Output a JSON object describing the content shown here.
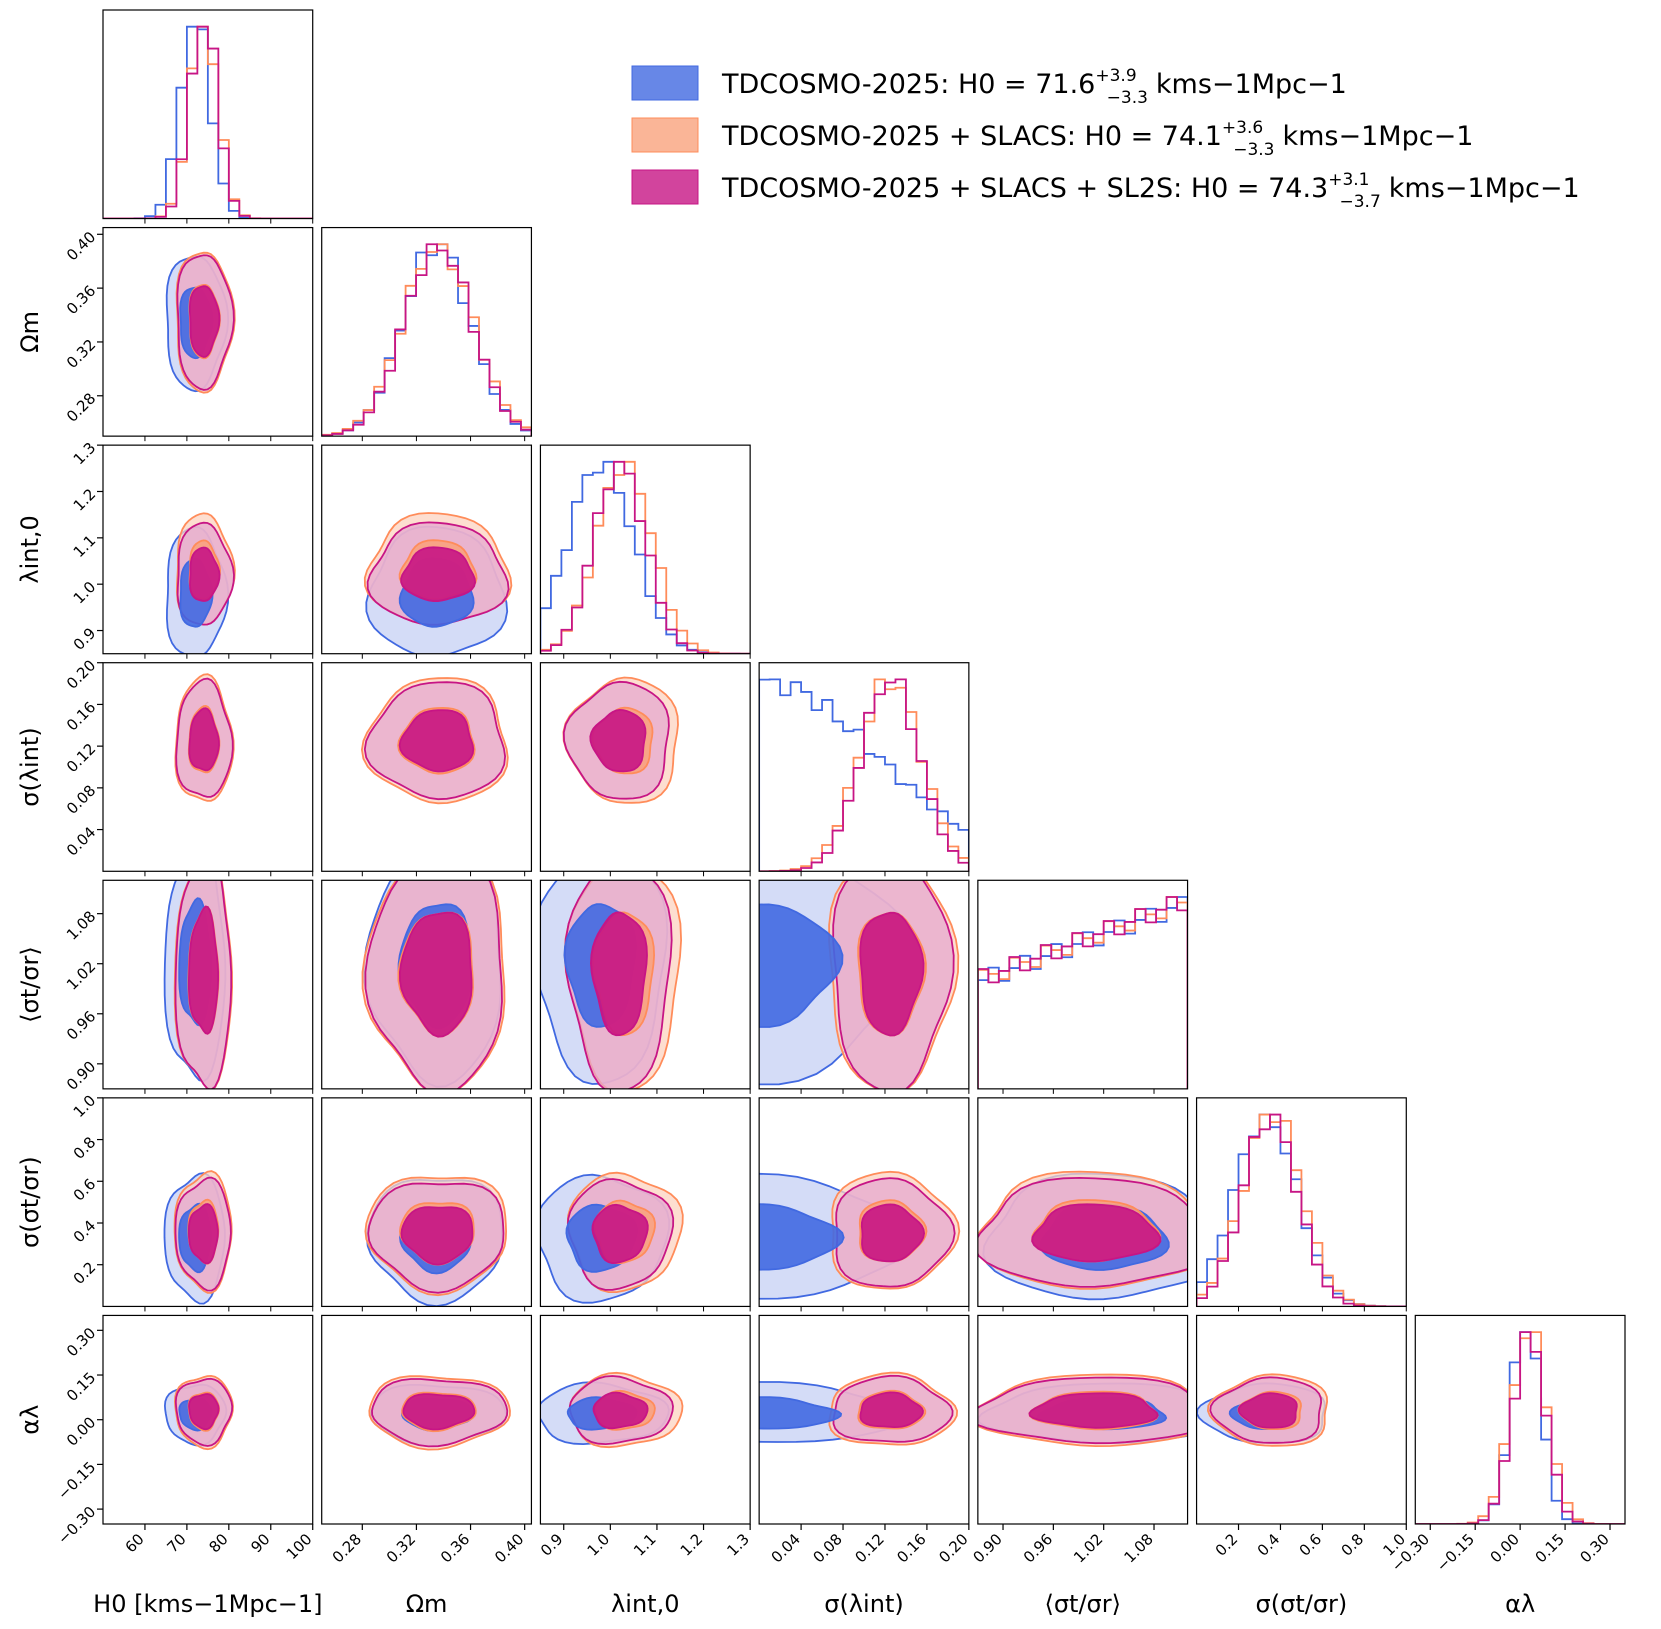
{
  "chart_data": {
    "type": "corner",
    "parameters": [
      {
        "key": "H0",
        "label": "H0 [kms−1Mpc−1]",
        "range": [
          50,
          100
        ],
        "ticks": [
          "60",
          "70",
          "80",
          "90",
          "100"
        ],
        "tick_values": [
          60,
          70,
          80,
          90,
          100
        ]
      },
      {
        "key": "Om",
        "label": "Ωm",
        "range": [
          0.25,
          0.405
        ],
        "ticks": [
          "0.28",
          "0.32",
          "0.36",
          "0.40"
        ],
        "tick_values": [
          0.28,
          0.32,
          0.36,
          0.4
        ]
      },
      {
        "key": "lam",
        "label": "λint,0",
        "range": [
          0.85,
          1.3
        ],
        "ticks": [
          "0.9",
          "1.0",
          "1.1",
          "1.2",
          "1.3"
        ],
        "tick_values": [
          0.9,
          1.0,
          1.1,
          1.2,
          1.3
        ]
      },
      {
        "key": "sig_lam",
        "label": "σ(λint)",
        "range": [
          0.0,
          0.2
        ],
        "ticks": [
          "0.04",
          "0.08",
          "0.12",
          "0.16",
          "0.20"
        ],
        "tick_values": [
          0.04,
          0.08,
          0.12,
          0.16,
          0.2
        ]
      },
      {
        "key": "ratio",
        "label": "⟨σt/σr⟩",
        "range": [
          0.87,
          1.12
        ],
        "ticks": [
          "0.90",
          "0.96",
          "1.02",
          "1.08"
        ],
        "tick_values": [
          0.9,
          0.96,
          1.02,
          1.08
        ]
      },
      {
        "key": "sig_ratio",
        "label": "σ(σt/σr)",
        "range": [
          0.0,
          1.0
        ],
        "ticks": [
          "0.2",
          "0.4",
          "0.6",
          "0.8",
          "1.0"
        ],
        "tick_values": [
          0.2,
          0.4,
          0.6,
          0.8,
          1.0
        ]
      },
      {
        "key": "alpha",
        "label": "αλ",
        "range": [
          -0.35,
          0.35
        ],
        "ticks": [
          "−0.30",
          "−0.15",
          "0.00",
          "0.15",
          "0.30"
        ],
        "tick_values": [
          -0.3,
          -0.15,
          0.0,
          0.15,
          0.3
        ]
      }
    ],
    "series": [
      {
        "name": "TDCOSMO-2025",
        "H0_label": "H0 = 71.6",
        "H0_plus": "+3.9",
        "H0_minus": "−3.3",
        "units": "kms−1Mpc−1",
        "color": "#4169e1",
        "fill1": "#4169e1",
        "fill2": "#c5d0f4",
        "mean": {
          "H0": 72,
          "Om": 0.335,
          "lam": 0.98,
          "sig_lam": 0.0,
          "ratio": 1.02,
          "sig_ratio": 0.33,
          "alpha": 0.02
        },
        "sd": {
          "H0": 3.6,
          "Om": 0.025,
          "lam": 0.07,
          "sig_lam": 0.07,
          "ratio": 0.07,
          "sig_ratio": 0.15,
          "alpha": 0.05
        },
        "half": {
          "sig_lam": true
        }
      },
      {
        "name": "TDCOSMO-2025 + SLACS",
        "H0_label": "H0 = 74.1",
        "H0_plus": "+3.6",
        "H0_minus": "−3.3",
        "units": "kms−1Mpc−1",
        "color": "#ff8c5a",
        "fill1": "#f9a27d",
        "fill2": "#fcd3c0",
        "mean": {
          "H0": 74,
          "Om": 0.336,
          "lam": 1.03,
          "sig_lam": 0.125,
          "ratio": 1.01,
          "sig_ratio": 0.36,
          "alpha": 0.03
        },
        "sd": {
          "H0": 3.4,
          "Om": 0.026,
          "lam": 0.06,
          "sig_lam": 0.03,
          "ratio": 0.07,
          "sig_ratio": 0.14,
          "alpha": 0.06
        },
        "half": {}
      },
      {
        "name": "TDCOSMO-2025 + SLACS + SL2S",
        "H0_label": "H0 = 74.3",
        "H0_plus": "+3.1",
        "H0_minus": "−3.7",
        "units": "kms−1Mpc−1",
        "color": "#c71585",
        "fill1": "#c71585",
        "fill2": "#e6a8cf",
        "mean": {
          "H0": 74,
          "Om": 0.336,
          "lam": 1.02,
          "sig_lam": 0.125,
          "ratio": 1.01,
          "sig_ratio": 0.35,
          "alpha": 0.03
        },
        "sd": {
          "H0": 3.3,
          "Om": 0.025,
          "lam": 0.055,
          "sig_lam": 0.028,
          "ratio": 0.07,
          "sig_ratio": 0.13,
          "alpha": 0.055
        },
        "half": {}
      }
    ],
    "legend_position": "top-right"
  }
}
